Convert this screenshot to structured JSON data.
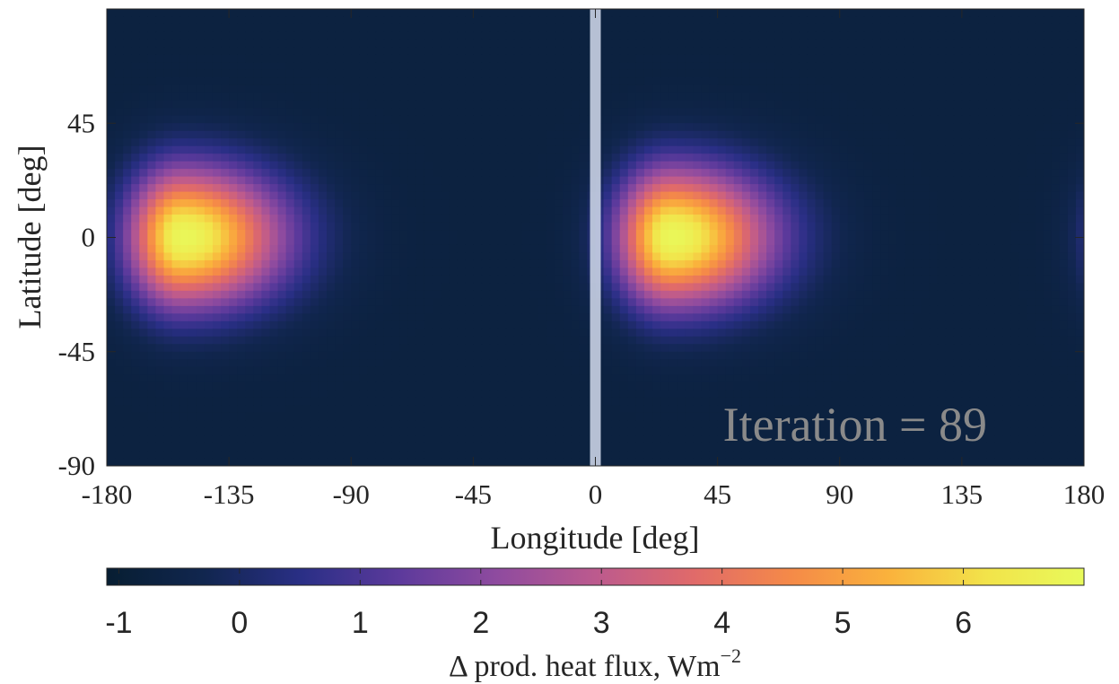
{
  "chart_data": {
    "type": "heatmap",
    "title": "",
    "xlabel": "Longitude [deg]",
    "ylabel": "Latitude [deg]",
    "xlim": [
      -180,
      180
    ],
    "ylim": [
      -90,
      90
    ],
    "x_ticks": [
      -180,
      -135,
      -90,
      -45,
      0,
      45,
      90,
      135,
      180
    ],
    "x_tick_labels": [
      "-180",
      "-135",
      "-90",
      "-45",
      "0",
      "45",
      "90",
      "135",
      "180"
    ],
    "y_ticks": [
      -90,
      -45,
      0,
      45
    ],
    "y_tick_labels": [
      "-90",
      "-45",
      "0",
      "45"
    ],
    "annotation": "Iteration = 89",
    "marker_line": {
      "longitude": 0,
      "color": "#c9d1e4"
    },
    "hotspots": [
      {
        "longitude": -152,
        "latitude": 0,
        "peak": 6.9
      },
      {
        "longitude": 28,
        "latitude": 0,
        "peak": 6.9
      }
    ],
    "background_value": -0.7,
    "colorbar": {
      "label_main": "Δ prod. heat flux, Wm",
      "label_exponent": "−2",
      "range": [
        -1.1,
        7.0
      ],
      "ticks": [
        -1,
        0,
        1,
        2,
        3,
        4,
        5,
        6
      ],
      "tick_labels": [
        "-1",
        "0",
        "1",
        "2",
        "3",
        "4",
        "5",
        "6"
      ],
      "colormap": [
        "#071e32",
        "#11264f",
        "#2a2f86",
        "#5d3a9c",
        "#8f4b9f",
        "#bc5a8e",
        "#e06a6a",
        "#f58a48",
        "#fab23c",
        "#f2e34a",
        "#e8fa5b"
      ]
    }
  }
}
